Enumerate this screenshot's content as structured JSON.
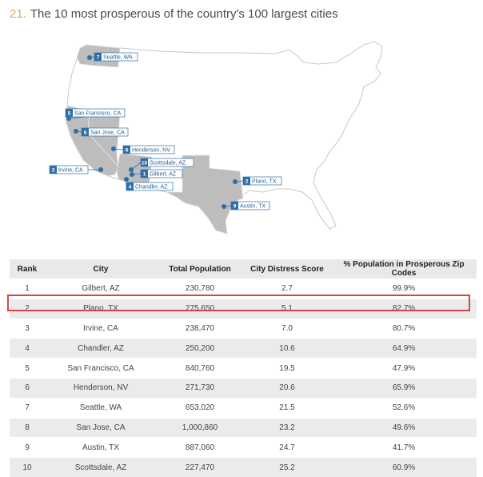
{
  "title_number": "21.",
  "title_text": "The 10 most prosperous of the country's 100 largest cities",
  "colors": {
    "accent_number": "#d9a96a",
    "marker": "#2f6fa8",
    "highlight": "#d64545",
    "state_fill": "#bdbdbd"
  },
  "map_labels": [
    {
      "rank": "7",
      "city": "Seattle, WA"
    },
    {
      "rank": "5",
      "city": "San Francisco, CA"
    },
    {
      "rank": "8",
      "city": "San Jose, CA"
    },
    {
      "rank": "6",
      "city": "Henderson, NV"
    },
    {
      "rank": "3",
      "city": "Irvine, CA"
    },
    {
      "rank": "10",
      "city": "Scottsdale, AZ"
    },
    {
      "rank": "1",
      "city": "Gilbert, AZ"
    },
    {
      "rank": "4",
      "city": "Chandler, AZ"
    },
    {
      "rank": "2",
      "city": "Plano, TX"
    },
    {
      "rank": "9",
      "city": "Austin, TX"
    }
  ],
  "table": {
    "headers": [
      "Rank",
      "City",
      "Total Population",
      "City Distress Score",
      "% Population in Prosperous Zip Codes"
    ],
    "highlighted_rank": "2"
  },
  "chart_data": {
    "type": "table",
    "title": "The 10 most prosperous of the country's 100 largest cities",
    "columns": [
      "Rank",
      "City",
      "Total Population",
      "City Distress Score",
      "% Population in Prosperous Zip Codes"
    ],
    "rows": [
      [
        "1",
        "Gilbert, AZ",
        "230,780",
        "2.7",
        "99.9%"
      ],
      [
        "2",
        "Plano, TX",
        "275,650",
        "5.1",
        "82.7%"
      ],
      [
        "3",
        "Irvine, CA",
        "238,470",
        "7.0",
        "80.7%"
      ],
      [
        "4",
        "Chandler, AZ",
        "250,200",
        "10.6",
        "64.9%"
      ],
      [
        "5",
        "San Francisco, CA",
        "840,760",
        "19.5",
        "47.9%"
      ],
      [
        "6",
        "Henderson, NV",
        "271,730",
        "20.6",
        "65.9%"
      ],
      [
        "7",
        "Seattle, WA",
        "653,020",
        "21.5",
        "52.6%"
      ],
      [
        "8",
        "San Jose, CA",
        "1,000,860",
        "23.2",
        "49.6%"
      ],
      [
        "9",
        "Austin, TX",
        "887,060",
        "24.7",
        "41.7%"
      ],
      [
        "10",
        "Scottsdale, AZ",
        "227,470",
        "25.2",
        "60.9%"
      ]
    ]
  }
}
